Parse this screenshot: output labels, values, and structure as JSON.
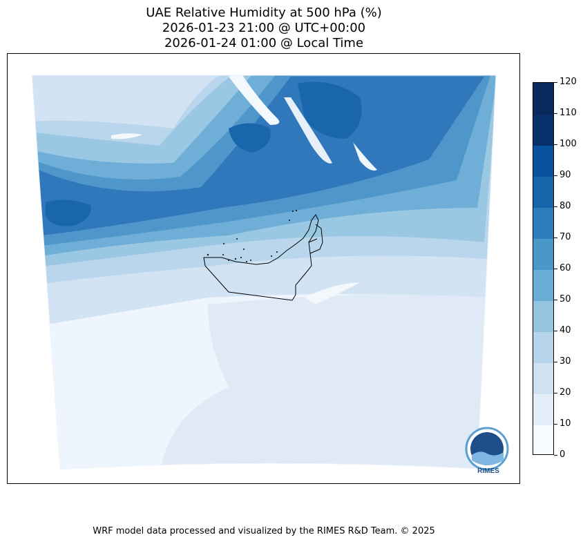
{
  "header": {
    "title_line1": "UAE Relative Humidity at 500 hPa (%)",
    "title_line2": "2026-01-23 21:00 @ UTC+00:00",
    "title_line3": "2026-01-24 01:00 @ Local Time"
  },
  "colorbar": {
    "levels": [
      "0",
      "10",
      "20",
      "30",
      "40",
      "50",
      "60",
      "70",
      "80",
      "90",
      "100",
      "110",
      "120"
    ],
    "colors": [
      "#f7fbff",
      "#e3eef9",
      "#d0e1f2",
      "#b7d4ea",
      "#94c4df",
      "#6aaed6",
      "#4a98c9",
      "#2e7ebc",
      "#1764ab",
      "#08519c",
      "#08306b",
      "#082a5c"
    ]
  },
  "logo": {
    "text": "RIMES"
  },
  "footer": {
    "credit": "WRF model data processed and visualized by the RIMES R&D Team. © 2025"
  }
}
